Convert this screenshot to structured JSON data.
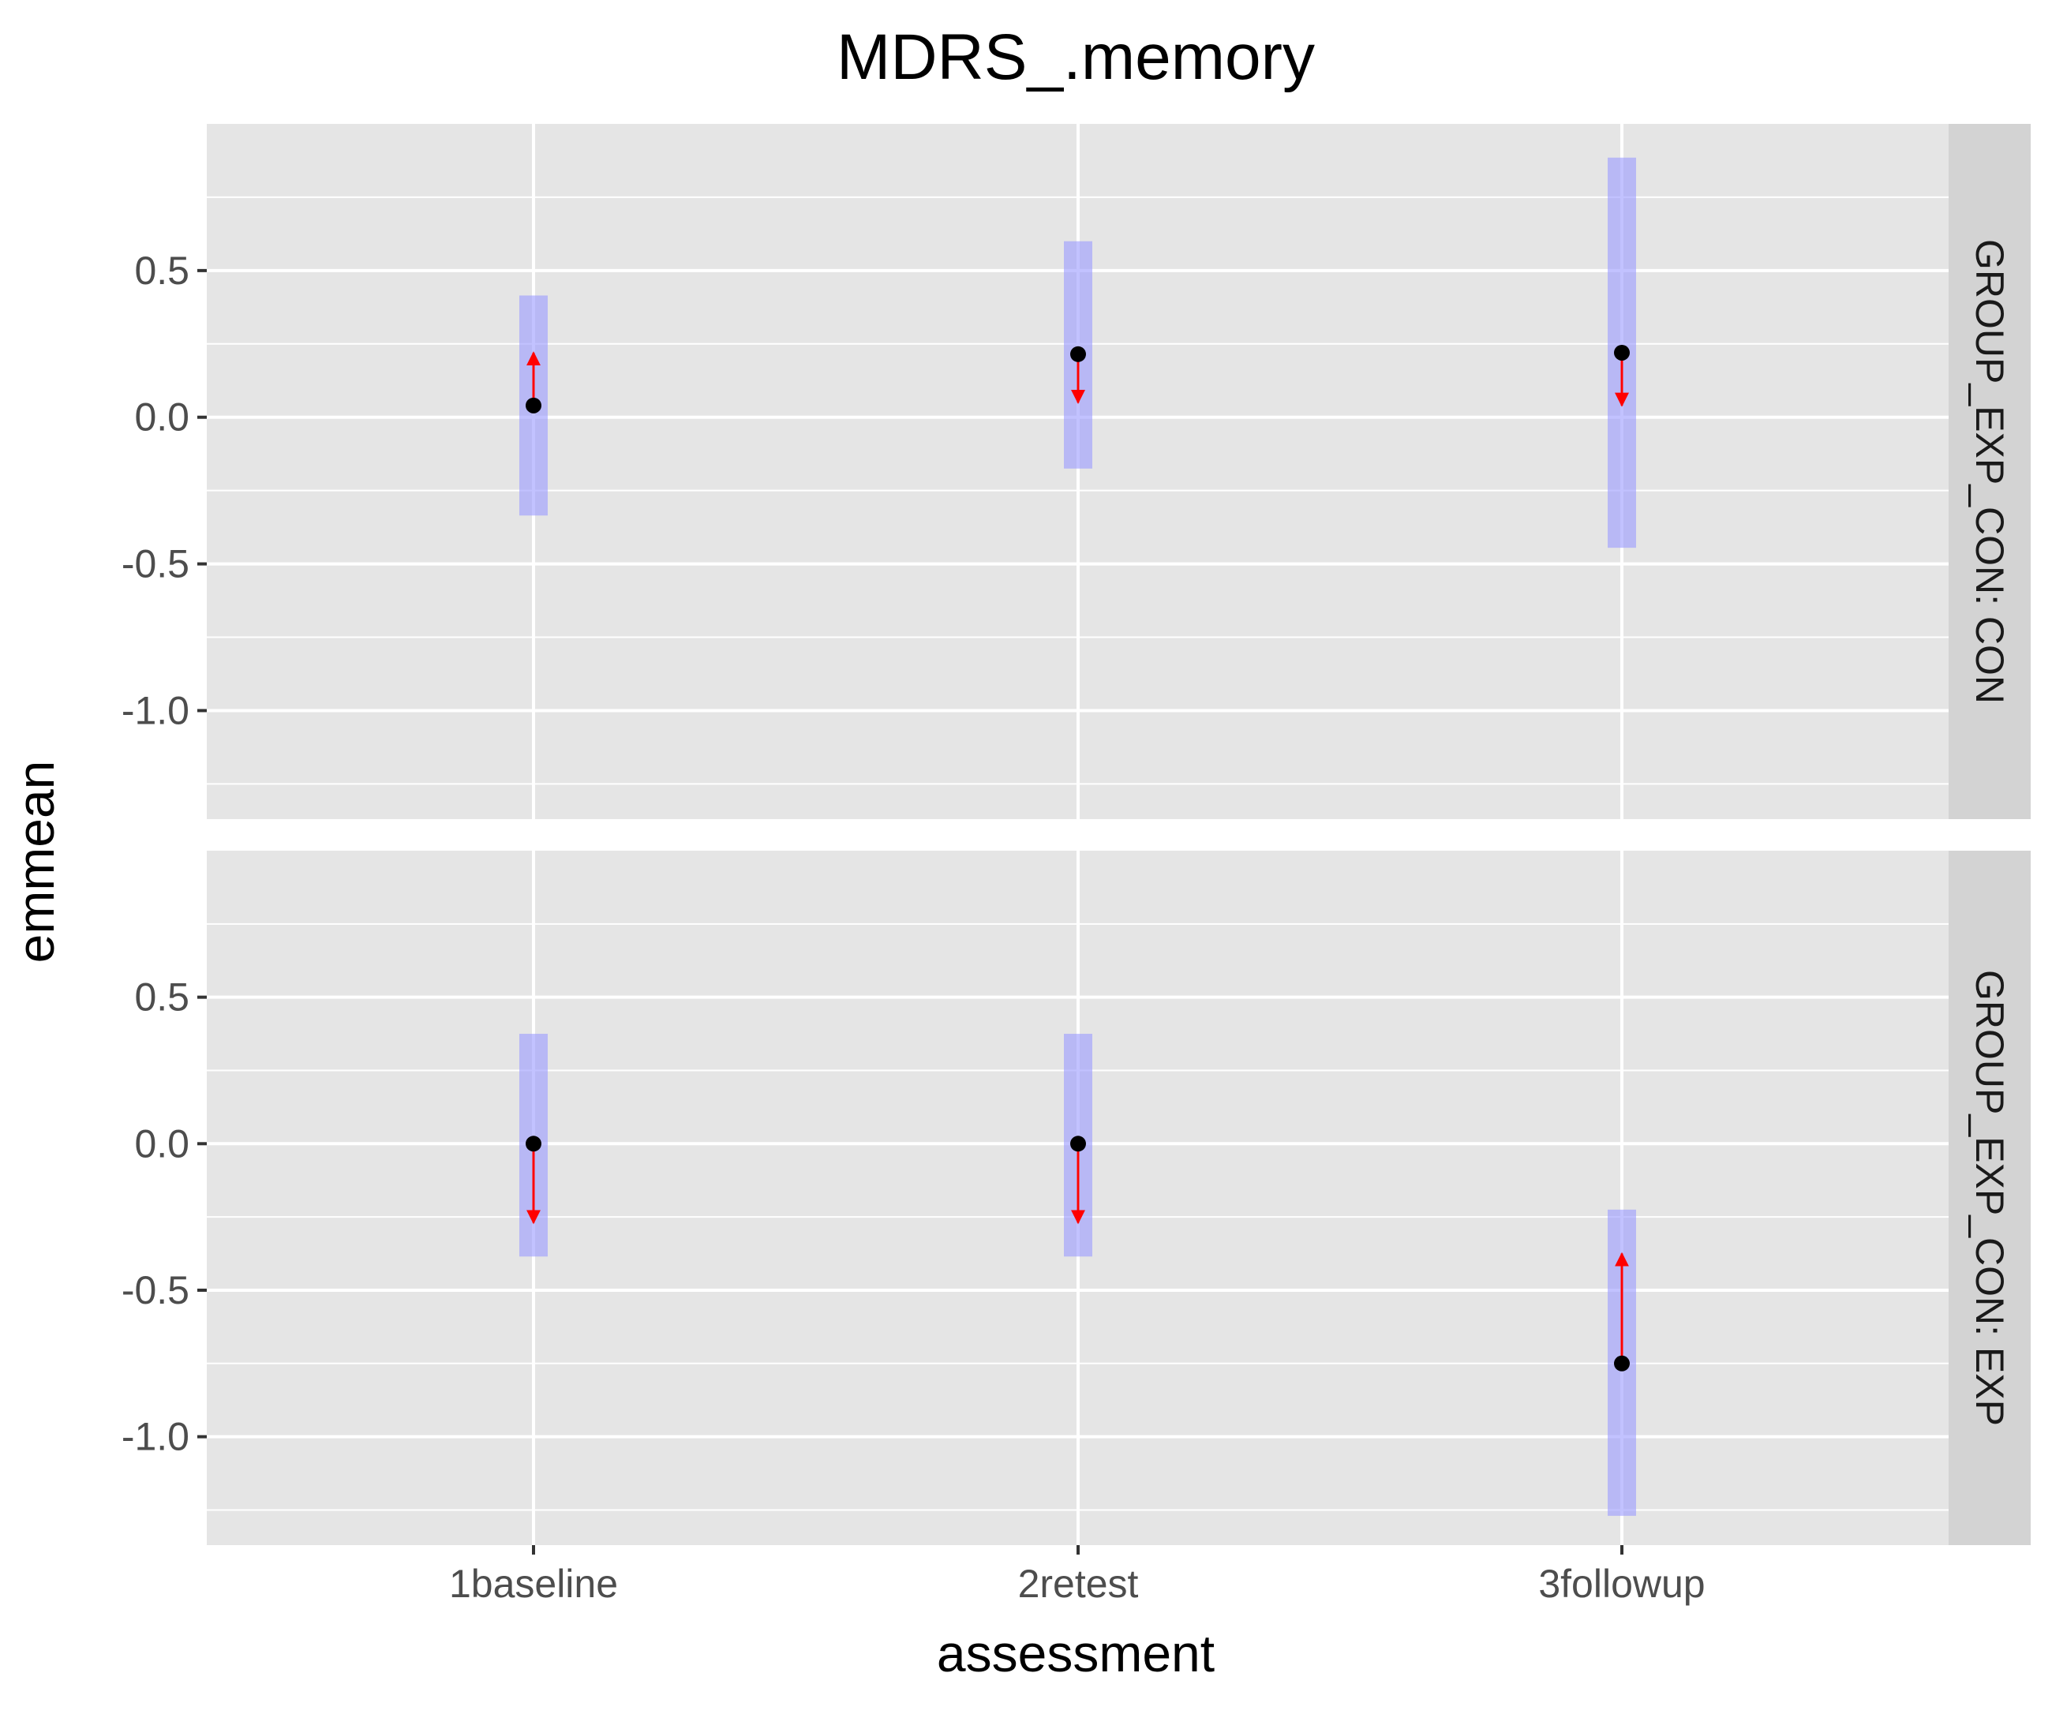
{
  "chart_data": {
    "type": "scatter",
    "title": "MDRS_.memory",
    "xlabel": "assessment",
    "ylabel": "emmean",
    "categories": [
      "1baseline",
      "2retest",
      "3followup"
    ],
    "y_ticks": [
      0.5,
      0.0,
      -0.5,
      -1.0
    ],
    "y_tick_labels": [
      "0.5",
      "0.0",
      "-0.5",
      "-1.0"
    ],
    "ylim": [
      -1.37,
      1.0
    ],
    "grid": true,
    "colors": {
      "panel_bg": "#e5e5e5",
      "strip_bg": "#d3d3d3",
      "grid": "#ffffff",
      "ci_band": "#9999ff",
      "point": "#000000",
      "arrow": "#ff0000",
      "tick": "#333333"
    },
    "panels": [
      {
        "strip": "GROUP_EXP_CON: CON",
        "emmean": [
          0.04,
          0.215,
          0.22
        ],
        "ci_lower": [
          -0.335,
          -0.175,
          -0.445
        ],
        "ci_upper": [
          0.415,
          0.6,
          0.885
        ],
        "arrow_end": [
          0.22,
          0.05,
          0.04
        ]
      },
      {
        "strip": "GROUP_EXP_CON: EXP",
        "emmean": [
          0.0,
          0.0,
          -0.75
        ],
        "ci_lower": [
          -0.385,
          -0.385,
          -1.27
        ],
        "ci_upper": [
          0.375,
          0.375,
          -0.225
        ],
        "arrow_end": [
          -0.27,
          -0.27,
          -0.375
        ]
      }
    ]
  }
}
